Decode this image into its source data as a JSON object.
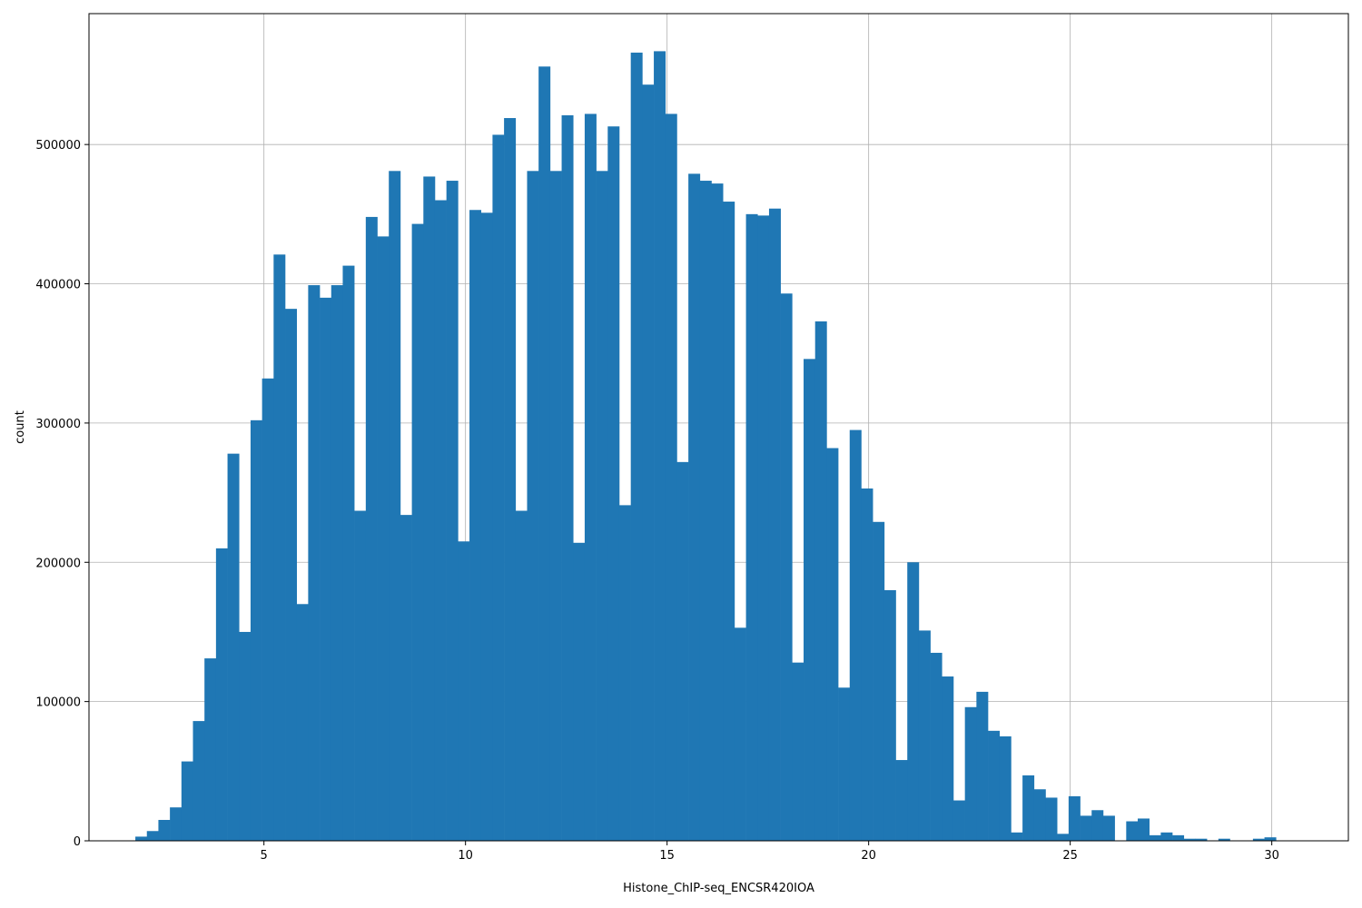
{
  "chart_data": {
    "type": "bar",
    "subtype": "histogram",
    "title": "",
    "xlabel": "Histone_ChIP-seq_ENCSR420IOA",
    "ylabel": "count",
    "xlim": [
      0.66,
      31.9
    ],
    "ylim": [
      0,
      594000
    ],
    "x_ticks": [
      5,
      10,
      15,
      20,
      25,
      30
    ],
    "y_ticks": [
      0,
      100000,
      200000,
      300000,
      400000,
      500000
    ],
    "grid": true,
    "color": "#1f77b4",
    "bin_start": 1.81,
    "bin_width": 0.2858,
    "values": [
      3000,
      7000,
      15000,
      24000,
      57000,
      86000,
      131000,
      210000,
      278000,
      150000,
      302000,
      332000,
      421000,
      382000,
      170000,
      399000,
      390000,
      399000,
      413000,
      237000,
      448000,
      434000,
      481000,
      234000,
      443000,
      477000,
      460000,
      474000,
      215000,
      453000,
      451000,
      507000,
      519000,
      237000,
      481000,
      556000,
      481000,
      521000,
      214000,
      522000,
      481000,
      513000,
      241000,
      566000,
      543000,
      567000,
      522000,
      272000,
      479000,
      474000,
      472000,
      459000,
      153000,
      450000,
      449000,
      454000,
      393000,
      128000,
      346000,
      373000,
      282000,
      110000,
      295000,
      253000,
      229000,
      180000,
      58000,
      200000,
      151000,
      135000,
      118000,
      29000,
      96000,
      107000,
      79000,
      75000,
      6000,
      47000,
      37000,
      31000,
      5000,
      32000,
      18000,
      22000,
      18000,
      0,
      14000,
      16000,
      4000,
      6000,
      4000,
      1500,
      1500,
      0,
      1500,
      0,
      0,
      1500,
      2500
    ]
  }
}
